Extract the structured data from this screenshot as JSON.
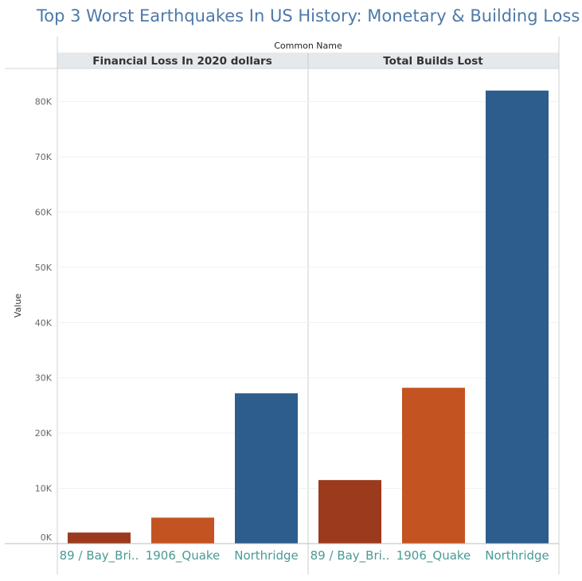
{
  "title": "Top 3 Worst Earthquakes In US History: Monetary & Building Loss",
  "chart_data": {
    "type": "bar",
    "column_header": "Common Name",
    "ylabel": "Value",
    "ylim": [
      0,
      86000
    ],
    "yticks": [
      0,
      10000,
      20000,
      30000,
      40000,
      50000,
      60000,
      70000,
      80000
    ],
    "ytick_labels": [
      "0K",
      "10K",
      "20K",
      "30K",
      "40K",
      "50K",
      "60K",
      "70K",
      "80K"
    ],
    "categories": [
      "89 / Bay_Bri..",
      "1906_Quake",
      "Northridge"
    ],
    "panels": [
      {
        "name": "Financial Loss In 2020 dollars",
        "values": [
          2000,
          4700,
          27200
        ],
        "colors": [
          "#9c3a1e",
          "#c45322",
          "#2c5d8c"
        ]
      },
      {
        "name": "Total Builds Lost",
        "values": [
          11500,
          28200,
          82000
        ],
        "colors": [
          "#9c3a1e",
          "#c45322",
          "#2c5d8c"
        ]
      }
    ]
  }
}
